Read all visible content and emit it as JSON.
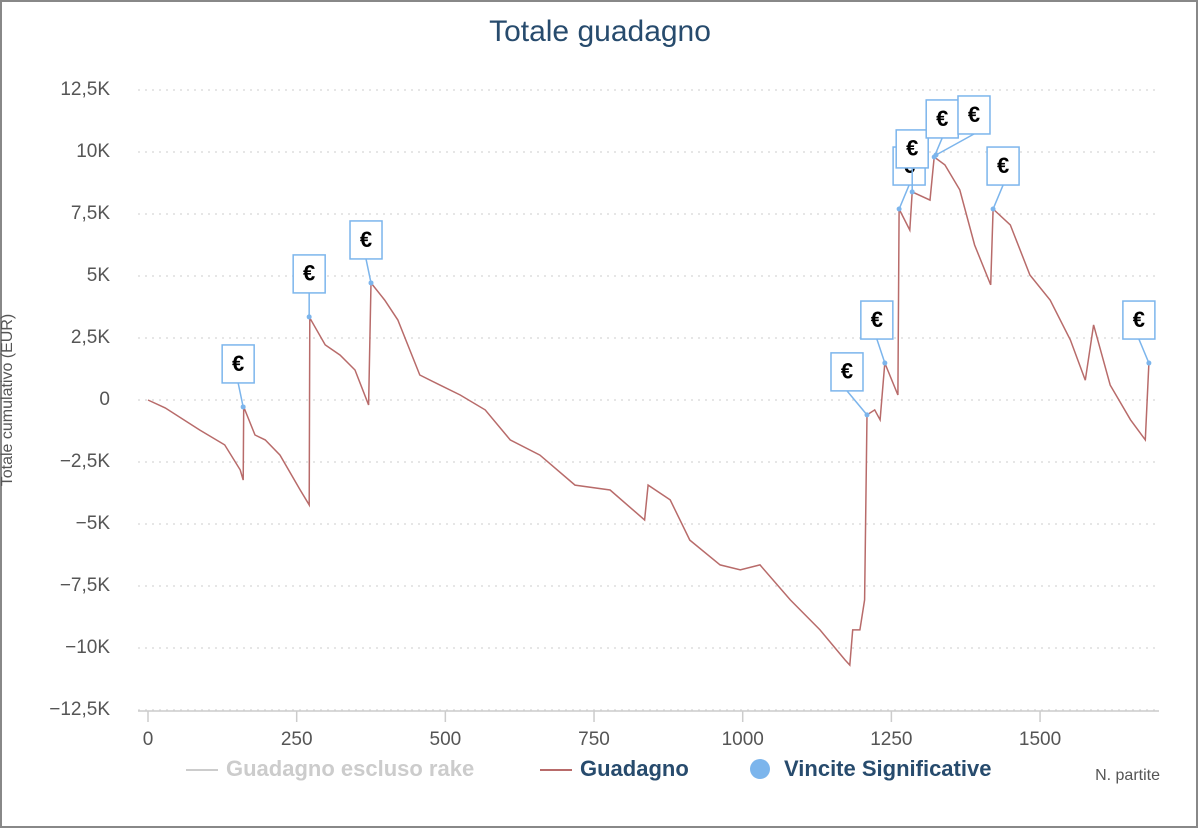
{
  "chart_data": {
    "type": "line",
    "title": "Totale guadagno",
    "xlabel": "N. partite",
    "ylabel": "Totale cumulativo (EUR)",
    "xlim": [
      0,
      1700
    ],
    "ylim": [
      -12500,
      12500
    ],
    "xticks": [
      0,
      250,
      500,
      750,
      1000,
      1250,
      1500
    ],
    "yticks": [
      {
        "value": -12500,
        "label": "−12,5K"
      },
      {
        "value": -10000,
        "label": "−10K"
      },
      {
        "value": -7500,
        "label": "−7,5K"
      },
      {
        "value": -5000,
        "label": "−5K"
      },
      {
        "value": -2500,
        "label": "−2,5K"
      },
      0,
      {
        "value": 2500,
        "label": "2,5K"
      },
      {
        "value": 5000,
        "label": "5K"
      },
      {
        "value": 7500,
        "label": "7,5K"
      },
      {
        "value": 10000,
        "label": "10K"
      },
      {
        "value": 12500,
        "label": "12,5K"
      }
    ],
    "grid": true,
    "series": [
      {
        "name": "Guadagno escluso rake",
        "color": "#cccccc",
        "visible": false
      },
      {
        "name": "Guadagno",
        "color": "#b86b6a",
        "x": [
          0,
          29,
          87,
          129,
          155,
          160,
          161,
          180,
          197,
          222,
          256,
          271,
          272,
          298,
          323,
          348,
          371,
          375,
          398,
          420,
          457,
          491,
          525,
          567,
          609,
          659,
          718,
          777,
          835,
          841,
          878,
          911,
          962,
          996,
          1029,
          1080,
          1130,
          1172,
          1180,
          1185,
          1197,
          1205,
          1209,
          1222,
          1231,
          1239,
          1261,
          1263,
          1281,
          1285,
          1315,
          1322,
          1340,
          1365,
          1390,
          1417,
          1421,
          1450,
          1483,
          1517,
          1551,
          1576,
          1590,
          1618,
          1652,
          1677,
          1683
        ],
        "values": [
          0,
          -320,
          -1210,
          -1810,
          -2820,
          -3230,
          -280,
          -1410,
          -1610,
          -2220,
          -3630,
          -4230,
          3310,
          2220,
          1810,
          1210,
          -200,
          4720,
          4030,
          3230,
          1010,
          600,
          200,
          -400,
          -1610,
          -2220,
          -3430,
          -3630,
          -4840,
          -3430,
          -4030,
          -5650,
          -6650,
          -6850,
          -6650,
          -8060,
          -9270,
          -10480,
          -10690,
          -9270,
          -9270,
          -8060,
          -600,
          -400,
          -800,
          1490,
          200,
          7700,
          6850,
          8390,
          8060,
          9800,
          9480,
          8470,
          6250,
          4640,
          7700,
          7060,
          5040,
          4030,
          2420,
          800,
          3030,
          600,
          -800,
          -1610,
          1490
        ]
      },
      {
        "name": "Vincite Significative",
        "color": "#7cb5ec",
        "marker_label": "€",
        "x": [
          160,
          271,
          375,
          1209,
          1239,
          1263,
          1285,
          1322,
          1325,
          1421,
          1683
        ],
        "values": [
          -280,
          3350,
          4720,
          -600,
          1490,
          7700,
          8390,
          9800,
          9880,
          7700,
          1490
        ]
      }
    ]
  }
}
